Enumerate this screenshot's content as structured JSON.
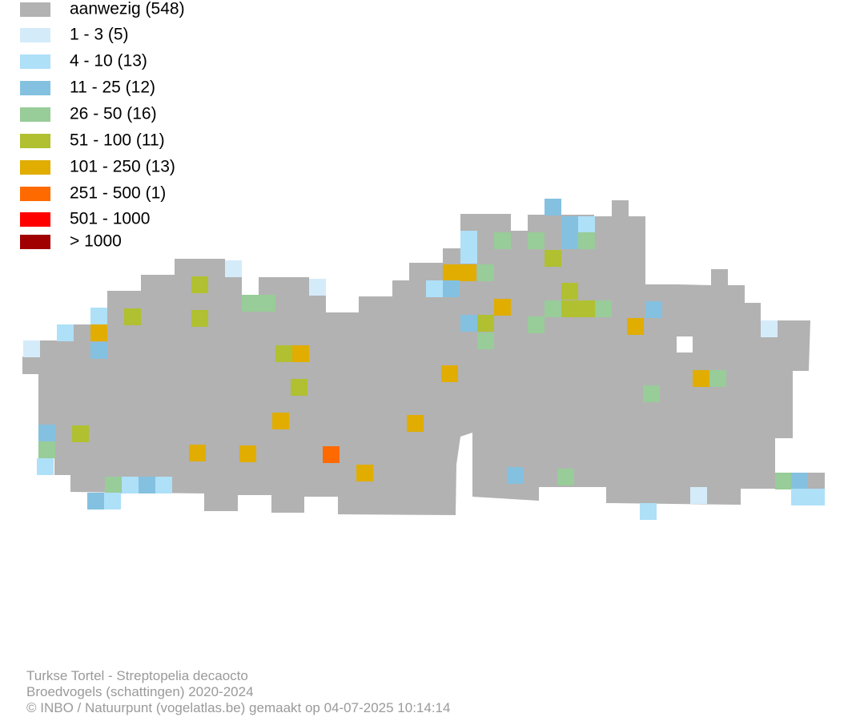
{
  "legend": [
    {
      "label": "aanwezig (548)",
      "color": "#b2b2b2"
    },
    {
      "label": "1 - 3 (5)",
      "color": "#d4ebfa"
    },
    {
      "label": "4 - 10 (13)",
      "color": "#aee0f8"
    },
    {
      "label": "11 - 25 (12)",
      "color": "#84c1e0"
    },
    {
      "label": "26 - 50 (16)",
      "color": "#98cc98"
    },
    {
      "label": "51 - 100 (11)",
      "color": "#b0c030"
    },
    {
      "label": "101 - 250 (13)",
      "color": "#e0ad00"
    },
    {
      "label": "251 - 500 (1)",
      "color": "#ff6a00"
    },
    {
      "label": "501 - 1000",
      "color": "#ff0000"
    },
    {
      "label": "> 1000",
      "color": "#a00000"
    }
  ],
  "footer": [
    "Turkse Tortel - Streptopelia decaocto",
    "Broedvogels (schattingen) 2020-2024",
    "© INBO / Natuurpunt (vogelatlas.be) gemaakt op 04-07-2025 10:14:14"
  ]
}
